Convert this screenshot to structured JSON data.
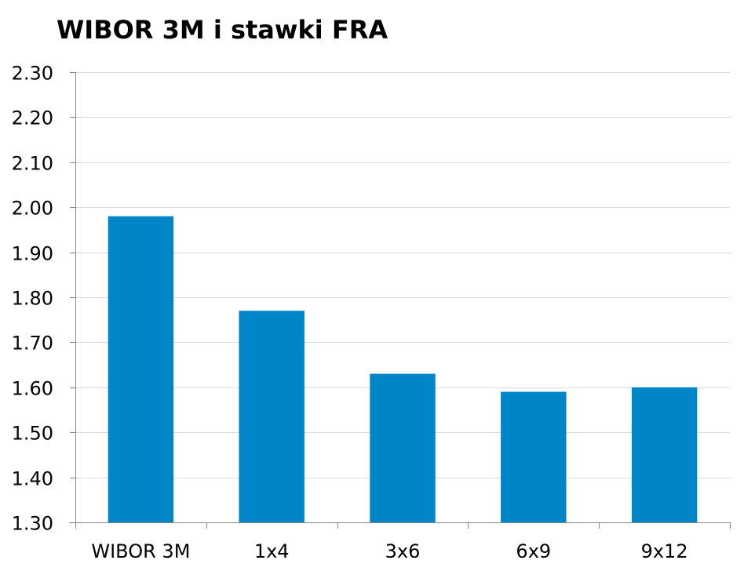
{
  "chart_data": {
    "type": "bar",
    "title": "WIBOR 3M i stawki FRA",
    "xlabel": "",
    "ylabel": "",
    "categories": [
      "WIBOR 3M",
      "1x4",
      "3x6",
      "6x9",
      "9x12"
    ],
    "values": [
      1.98,
      1.77,
      1.63,
      1.59,
      1.6
    ],
    "ylim": [
      1.3,
      2.3
    ],
    "yticks": [
      "1.30",
      "1.40",
      "1.50",
      "1.60",
      "1.70",
      "1.80",
      "1.90",
      "2.00",
      "2.10",
      "2.20",
      "2.30"
    ],
    "grid": true,
    "legend": "none",
    "colors": {
      "bar": "#0085c8",
      "grid": "#d9d9d9",
      "axis": "#868686"
    }
  }
}
